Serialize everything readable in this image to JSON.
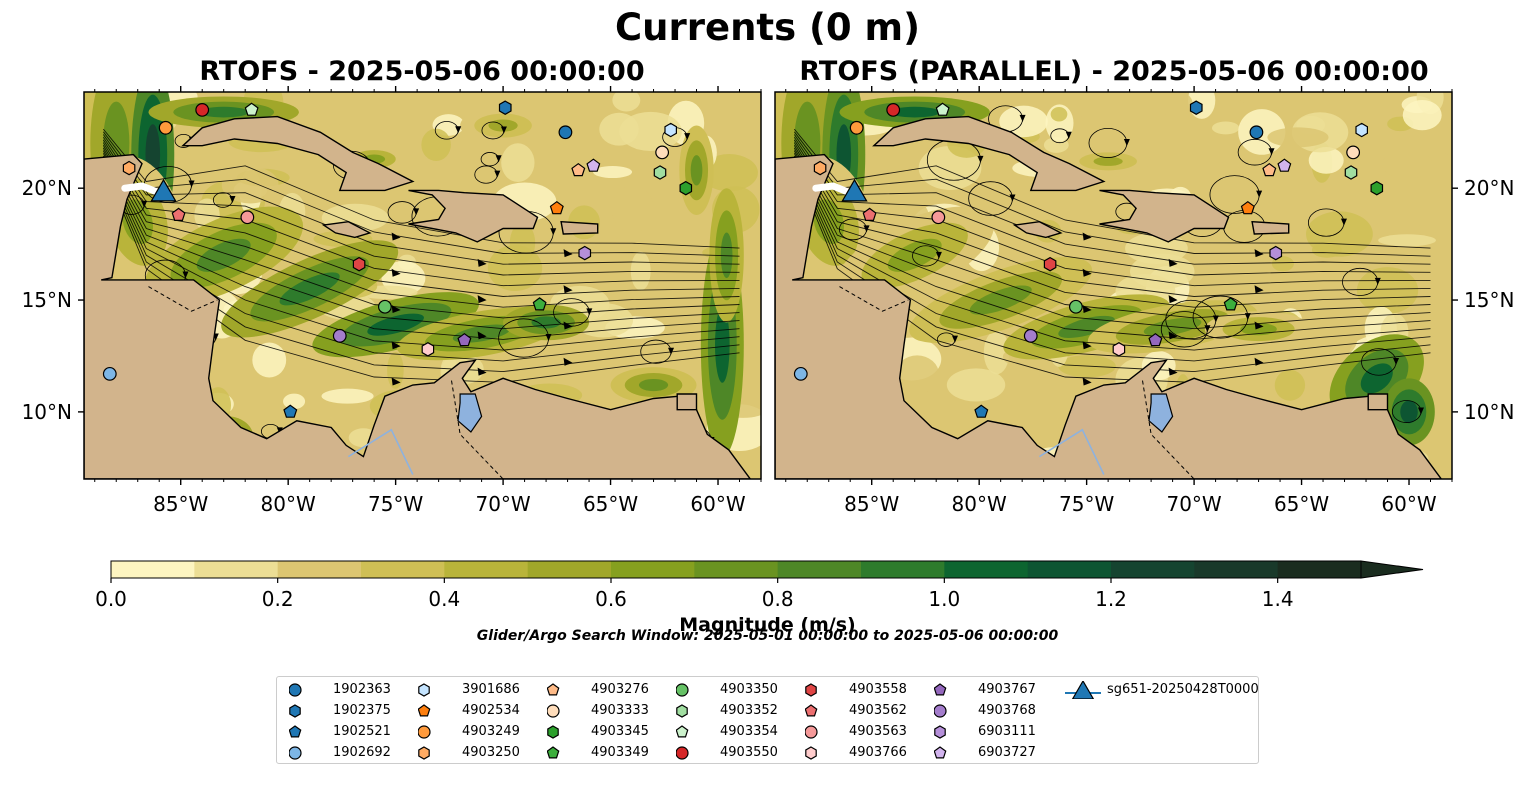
{
  "figure": {
    "title": "Currents (0 m)",
    "panel_titles": [
      "RTOFS - 2025-05-06 00:00:00",
      "RTOFS (PARALLEL) - 2025-05-06 00:00:00"
    ],
    "colorbar_label": "Magnitude (m/s)",
    "search_window": "Glider/Argo Search Window: 2025-05-01 00:00:00 to 2025-05-06 00:00:00",
    "colors": {
      "land": "#d2b48c",
      "lake": "#8eb2de",
      "glider": "#1f77b4",
      "colormap": [
        "#fdf5c1",
        "#ecde95",
        "#dcc672",
        "#cfbf55",
        "#b9b43a",
        "#a1a72a",
        "#86a01f",
        "#6a9321",
        "#4e8727",
        "#2e7b2c",
        "#0d6530",
        "#0d5532",
        "#154430",
        "#19392a",
        "#1a2c1f"
      ]
    }
  },
  "chart_data": [
    {
      "type": "heatmap",
      "title": "RTOFS - 2025-05-06 00:00:00",
      "quantity": "Currents (0 m)",
      "x_ticks": [
        "85°W",
        "80°W",
        "75°W",
        "70°W",
        "65°W",
        "60°W"
      ],
      "x_tick_values": [
        -85,
        -80,
        -75,
        -70,
        -65,
        -60
      ],
      "y_ticks": [
        "10°N",
        "15°N",
        "20°N"
      ],
      "y_tick_values": [
        10,
        15,
        20
      ],
      "xlim": [
        -89.5,
        -58
      ],
      "ylim": [
        7,
        24.3
      ],
      "glider_track": {
        "name": "sg651-20250428T0000",
        "lon": -85.8,
        "lat": 19.7,
        "tail": [
          [
            -87.6,
            20.0
          ],
          [
            -86.8,
            20.1
          ],
          [
            -85.9,
            19.75
          ]
        ]
      },
      "floats": [
        {
          "id": "4903550",
          "lon": -84.0,
          "lat": 23.5
        },
        {
          "id": "4903249",
          "lon": -85.7,
          "lat": 22.7
        },
        {
          "id": "4903354",
          "lon": -81.7,
          "lat": 23.5
        },
        {
          "id": "1902375",
          "lon": -69.9,
          "lat": 23.6
        },
        {
          "id": "1902363",
          "lon": -67.1,
          "lat": 22.5
        },
        {
          "id": "3901686",
          "lon": -62.2,
          "lat": 22.6
        },
        {
          "id": "4903333",
          "lon": -62.6,
          "lat": 21.6
        },
        {
          "id": "6903727",
          "lon": -65.8,
          "lat": 21.0
        },
        {
          "id": "4903276",
          "lon": -66.5,
          "lat": 20.8
        },
        {
          "id": "4903352",
          "lon": -62.7,
          "lat": 20.7
        },
        {
          "id": "4903345",
          "lon": -61.5,
          "lat": 20.0
        },
        {
          "id": "4903250",
          "lon": -87.4,
          "lat": 20.9
        },
        {
          "id": "4903562",
          "lon": -85.1,
          "lat": 18.8
        },
        {
          "id": "4903563",
          "lon": -81.9,
          "lat": 18.7
        },
        {
          "id": "4902534",
          "lon": -67.5,
          "lat": 19.1
        },
        {
          "id": "4903558",
          "lon": -76.7,
          "lat": 16.6
        },
        {
          "id": "6903111",
          "lon": -66.2,
          "lat": 17.1
        },
        {
          "id": "4903350",
          "lon": -75.5,
          "lat": 14.7
        },
        {
          "id": "4903349",
          "lon": -68.3,
          "lat": 14.8
        },
        {
          "id": "4903768",
          "lon": -77.6,
          "lat": 13.4
        },
        {
          "id": "4903767",
          "lon": -71.8,
          "lat": 13.2
        },
        {
          "id": "4903766",
          "lon": -73.5,
          "lat": 12.8
        },
        {
          "id": "1902692",
          "lon": -88.3,
          "lat": 11.7
        },
        {
          "id": "1902521",
          "lon": -79.9,
          "lat": 10.0
        }
      ]
    },
    {
      "type": "heatmap",
      "title": "RTOFS (PARALLEL) - 2025-05-06 00:00:00",
      "quantity": "Currents (0 m)",
      "x_ticks": [
        "85°W",
        "80°W",
        "75°W",
        "70°W",
        "65°W",
        "60°W"
      ],
      "x_tick_values": [
        -85,
        -80,
        -75,
        -70,
        -65,
        -60
      ],
      "y_ticks": [
        "10°N",
        "15°N",
        "20°N"
      ],
      "y_tick_values": [
        10,
        15,
        20
      ],
      "xlim": [
        -89.5,
        -58
      ],
      "ylim": [
        7,
        24.3
      ],
      "glider_track": {
        "name": "sg651-20250428T0000",
        "lon": -85.8,
        "lat": 19.7,
        "tail": [
          [
            -87.6,
            20.0
          ],
          [
            -86.8,
            20.1
          ],
          [
            -85.9,
            19.75
          ]
        ]
      },
      "floats": [
        {
          "id": "4903550",
          "lon": -84.0,
          "lat": 23.5
        },
        {
          "id": "4903249",
          "lon": -85.7,
          "lat": 22.7
        },
        {
          "id": "4903354",
          "lon": -81.7,
          "lat": 23.5
        },
        {
          "id": "1902375",
          "lon": -69.9,
          "lat": 23.6
        },
        {
          "id": "1902363",
          "lon": -67.1,
          "lat": 22.5
        },
        {
          "id": "3901686",
          "lon": -62.2,
          "lat": 22.6
        },
        {
          "id": "4903333",
          "lon": -62.6,
          "lat": 21.6
        },
        {
          "id": "6903727",
          "lon": -65.8,
          "lat": 21.0
        },
        {
          "id": "4903276",
          "lon": -66.5,
          "lat": 20.8
        },
        {
          "id": "4903352",
          "lon": -62.7,
          "lat": 20.7
        },
        {
          "id": "4903345",
          "lon": -61.5,
          "lat": 20.0
        },
        {
          "id": "4903250",
          "lon": -87.4,
          "lat": 20.9
        },
        {
          "id": "4903562",
          "lon": -85.1,
          "lat": 18.8
        },
        {
          "id": "4903563",
          "lon": -81.9,
          "lat": 18.7
        },
        {
          "id": "4902534",
          "lon": -67.5,
          "lat": 19.1
        },
        {
          "id": "4903558",
          "lon": -76.7,
          "lat": 16.6
        },
        {
          "id": "6903111",
          "lon": -66.2,
          "lat": 17.1
        },
        {
          "id": "4903350",
          "lon": -75.5,
          "lat": 14.7
        },
        {
          "id": "4903349",
          "lon": -68.3,
          "lat": 14.8
        },
        {
          "id": "4903768",
          "lon": -77.6,
          "lat": 13.4
        },
        {
          "id": "4903767",
          "lon": -71.8,
          "lat": 13.2
        },
        {
          "id": "4903766",
          "lon": -73.5,
          "lat": 12.8
        },
        {
          "id": "1902692",
          "lon": -88.3,
          "lat": 11.7
        },
        {
          "id": "1902521",
          "lon": -79.9,
          "lat": 10.0
        }
      ]
    }
  ],
  "colorbar": {
    "label": "Magnitude (m/s)",
    "min": 0.0,
    "max": 1.5,
    "step": 0.1,
    "extend": "max",
    "ticks": [
      0.0,
      0.2,
      0.4,
      0.6,
      0.8,
      1.0,
      1.2,
      1.4
    ],
    "tick_labels": [
      "0.0",
      "0.2",
      "0.4",
      "0.6",
      "0.8",
      "1.0",
      "1.2",
      "1.4"
    ]
  },
  "legend": {
    "entries": [
      {
        "id": "1902363",
        "marker": "circle",
        "color": "#1f77b4"
      },
      {
        "id": "1902375",
        "marker": "hexagon",
        "color": "#1f77b4"
      },
      {
        "id": "1902521",
        "marker": "pentagon",
        "color": "#1f77b4"
      },
      {
        "id": "1902692",
        "marker": "circle",
        "color": "#7db6e6"
      },
      {
        "id": "3901686",
        "marker": "hexagon",
        "color": "#c4e4ff"
      },
      {
        "id": "4902534",
        "marker": "pentagon",
        "color": "#ff7f0e"
      },
      {
        "id": "4903249",
        "marker": "circle",
        "color": "#ff9a3c"
      },
      {
        "id": "4903250",
        "marker": "hexagon",
        "color": "#ffab63"
      },
      {
        "id": "4903276",
        "marker": "pentagon",
        "color": "#ffbb88"
      },
      {
        "id": "4903333",
        "marker": "circle",
        "color": "#ffddbb"
      },
      {
        "id": "4903345",
        "marker": "hexagon",
        "color": "#2ca02c"
      },
      {
        "id": "4903349",
        "marker": "pentagon",
        "color": "#3cae3c"
      },
      {
        "id": "4903350",
        "marker": "circle",
        "color": "#66c266"
      },
      {
        "id": "4903352",
        "marker": "hexagon",
        "color": "#a1dea1"
      },
      {
        "id": "4903354",
        "marker": "pentagon",
        "color": "#ccf2cc"
      },
      {
        "id": "4903550",
        "marker": "circle",
        "color": "#d62728"
      },
      {
        "id": "4903558",
        "marker": "hexagon",
        "color": "#e04545"
      },
      {
        "id": "4903562",
        "marker": "pentagon",
        "color": "#ec6f70"
      },
      {
        "id": "4903563",
        "marker": "circle",
        "color": "#f59999"
      },
      {
        "id": "4903766",
        "marker": "hexagon",
        "color": "#ffcccc"
      },
      {
        "id": "4903767",
        "marker": "pentagon",
        "color": "#9467bd"
      },
      {
        "id": "4903768",
        "marker": "circle",
        "color": "#a47dcc"
      },
      {
        "id": "6903111",
        "marker": "hexagon",
        "color": "#b58fd9"
      },
      {
        "id": "6903727",
        "marker": "pentagon",
        "color": "#d2b4ee"
      },
      {
        "id": "sg651-20250428T0000",
        "marker": "triangle",
        "color": "#1f77b4"
      }
    ]
  }
}
